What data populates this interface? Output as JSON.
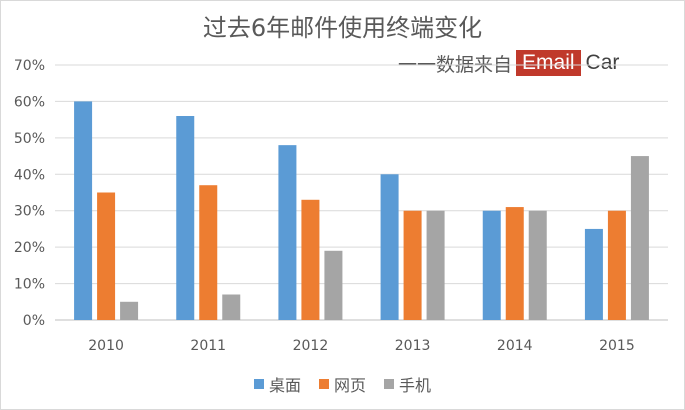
{
  "chart_data": {
    "type": "bar",
    "title": "过去6年邮件使用终端变化",
    "source": {
      "prefix": "一一数据来自",
      "brand_highlight": "Email",
      "brand_tail": "Car"
    },
    "categories": [
      "2010",
      "2011",
      "2012",
      "2013",
      "2014",
      "2015"
    ],
    "series": [
      {
        "name": "桌面",
        "color": "#5b9bd5",
        "values": [
          60,
          56,
          48,
          40,
          30,
          25
        ]
      },
      {
        "name": "网页",
        "color": "#ed7d31",
        "values": [
          35,
          37,
          33,
          30,
          31,
          30
        ]
      },
      {
        "name": "手机",
        "color": "#a5a5a5",
        "values": [
          5,
          7,
          19,
          30,
          30,
          45
        ]
      }
    ],
    "y_ticks": [
      "0%",
      "10%",
      "20%",
      "30%",
      "40%",
      "50%",
      "60%",
      "70%"
    ],
    "ylim": [
      0,
      70
    ],
    "ylabel": "",
    "xlabel": "",
    "grid": true,
    "legend_position": "bottom"
  }
}
